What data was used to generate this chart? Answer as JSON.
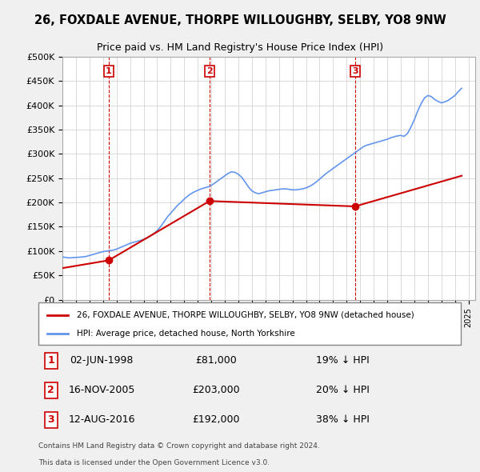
{
  "title1": "26, FOXDALE AVENUE, THORPE WILLOUGHBY, SELBY, YO8 9NW",
  "title2": "Price paid vs. HM Land Registry's House Price Index (HPI)",
  "ylabel_ticks": [
    "£0",
    "£50K",
    "£100K",
    "£150K",
    "£200K",
    "£250K",
    "£300K",
    "£350K",
    "£400K",
    "£450K",
    "£500K"
  ],
  "ylim": [
    0,
    500000
  ],
  "xlim_start": 1995.0,
  "xlim_end": 2025.5,
  "hpi_color": "#6495ED",
  "price_color": "#CC0000",
  "vline_color": "#CC0000",
  "bg_color": "#f0f0f0",
  "plot_bg": "#ffffff",
  "grid_color": "#cccccc",
  "legend_label1": "26, FOXDALE AVENUE, THORPE WILLOUGHBY, SELBY, YO8 9NW (detached house)",
  "legend_label2": "HPI: Average price, detached house, North Yorkshire",
  "transactions": [
    {
      "num": 1,
      "date": "02-JUN-1998",
      "price": 81000,
      "hpi_rel": "19% ↓ HPI",
      "year": 1998.42
    },
    {
      "num": 2,
      "date": "16-NOV-2005",
      "price": 203000,
      "hpi_rel": "20% ↓ HPI",
      "year": 2005.87
    },
    {
      "num": 3,
      "date": "12-AUG-2016",
      "price": 192000,
      "hpi_rel": "38% ↓ HPI",
      "year": 2016.62
    }
  ],
  "footer1": "Contains HM Land Registry data © Crown copyright and database right 2024.",
  "footer2": "This data is licensed under the Open Government Licence v3.0.",
  "hpi_data_x": [
    1995.0,
    1995.25,
    1995.5,
    1995.75,
    1996.0,
    1996.25,
    1996.5,
    1996.75,
    1997.0,
    1997.25,
    1997.5,
    1997.75,
    1998.0,
    1998.25,
    1998.5,
    1998.75,
    1999.0,
    1999.25,
    1999.5,
    1999.75,
    2000.0,
    2000.25,
    2000.5,
    2000.75,
    2001.0,
    2001.25,
    2001.5,
    2001.75,
    2002.0,
    2002.25,
    2002.5,
    2002.75,
    2003.0,
    2003.25,
    2003.5,
    2003.75,
    2004.0,
    2004.25,
    2004.5,
    2004.75,
    2005.0,
    2005.25,
    2005.5,
    2005.75,
    2006.0,
    2006.25,
    2006.5,
    2006.75,
    2007.0,
    2007.25,
    2007.5,
    2007.75,
    2008.0,
    2008.25,
    2008.5,
    2008.75,
    2009.0,
    2009.25,
    2009.5,
    2009.75,
    2010.0,
    2010.25,
    2010.5,
    2010.75,
    2011.0,
    2011.25,
    2011.5,
    2011.75,
    2012.0,
    2012.25,
    2012.5,
    2012.75,
    2013.0,
    2013.25,
    2013.5,
    2013.75,
    2014.0,
    2014.25,
    2014.5,
    2014.75,
    2015.0,
    2015.25,
    2015.5,
    2015.75,
    2016.0,
    2016.25,
    2016.5,
    2016.75,
    2017.0,
    2017.25,
    2017.5,
    2017.75,
    2018.0,
    2018.25,
    2018.5,
    2018.75,
    2019.0,
    2019.25,
    2019.5,
    2019.75,
    2020.0,
    2020.25,
    2020.5,
    2020.75,
    2021.0,
    2021.25,
    2021.5,
    2021.75,
    2022.0,
    2022.25,
    2022.5,
    2022.75,
    2023.0,
    2023.25,
    2023.5,
    2023.75,
    2024.0,
    2024.25,
    2024.5
  ],
  "hpi_data_y": [
    88000,
    87000,
    86000,
    86500,
    87000,
    87500,
    88000,
    89000,
    91000,
    93000,
    95000,
    97000,
    99000,
    100000,
    101000,
    102000,
    104000,
    107000,
    110000,
    113000,
    116000,
    118000,
    120000,
    122000,
    124000,
    127000,
    131000,
    136000,
    142000,
    150000,
    160000,
    170000,
    178000,
    186000,
    194000,
    200000,
    207000,
    213000,
    218000,
    222000,
    225000,
    228000,
    230000,
    232000,
    235000,
    240000,
    245000,
    250000,
    255000,
    260000,
    263000,
    262000,
    258000,
    252000,
    242000,
    232000,
    224000,
    220000,
    218000,
    220000,
    222000,
    224000,
    225000,
    226000,
    227000,
    228000,
    228000,
    227000,
    226000,
    226000,
    227000,
    228000,
    230000,
    233000,
    237000,
    242000,
    248000,
    254000,
    260000,
    265000,
    270000,
    275000,
    280000,
    285000,
    290000,
    295000,
    300000,
    305000,
    310000,
    315000,
    318000,
    320000,
    322000,
    324000,
    326000,
    328000,
    330000,
    333000,
    335000,
    337000,
    338000,
    336000,
    342000,
    355000,
    370000,
    388000,
    403000,
    415000,
    420000,
    418000,
    412000,
    408000,
    405000,
    407000,
    410000,
    415000,
    420000,
    428000,
    435000
  ],
  "price_line_x": [
    1995.0,
    1998.42,
    2005.87,
    2016.62,
    2024.5
  ],
  "price_line_y": [
    65000,
    81000,
    203000,
    192000,
    255000
  ]
}
